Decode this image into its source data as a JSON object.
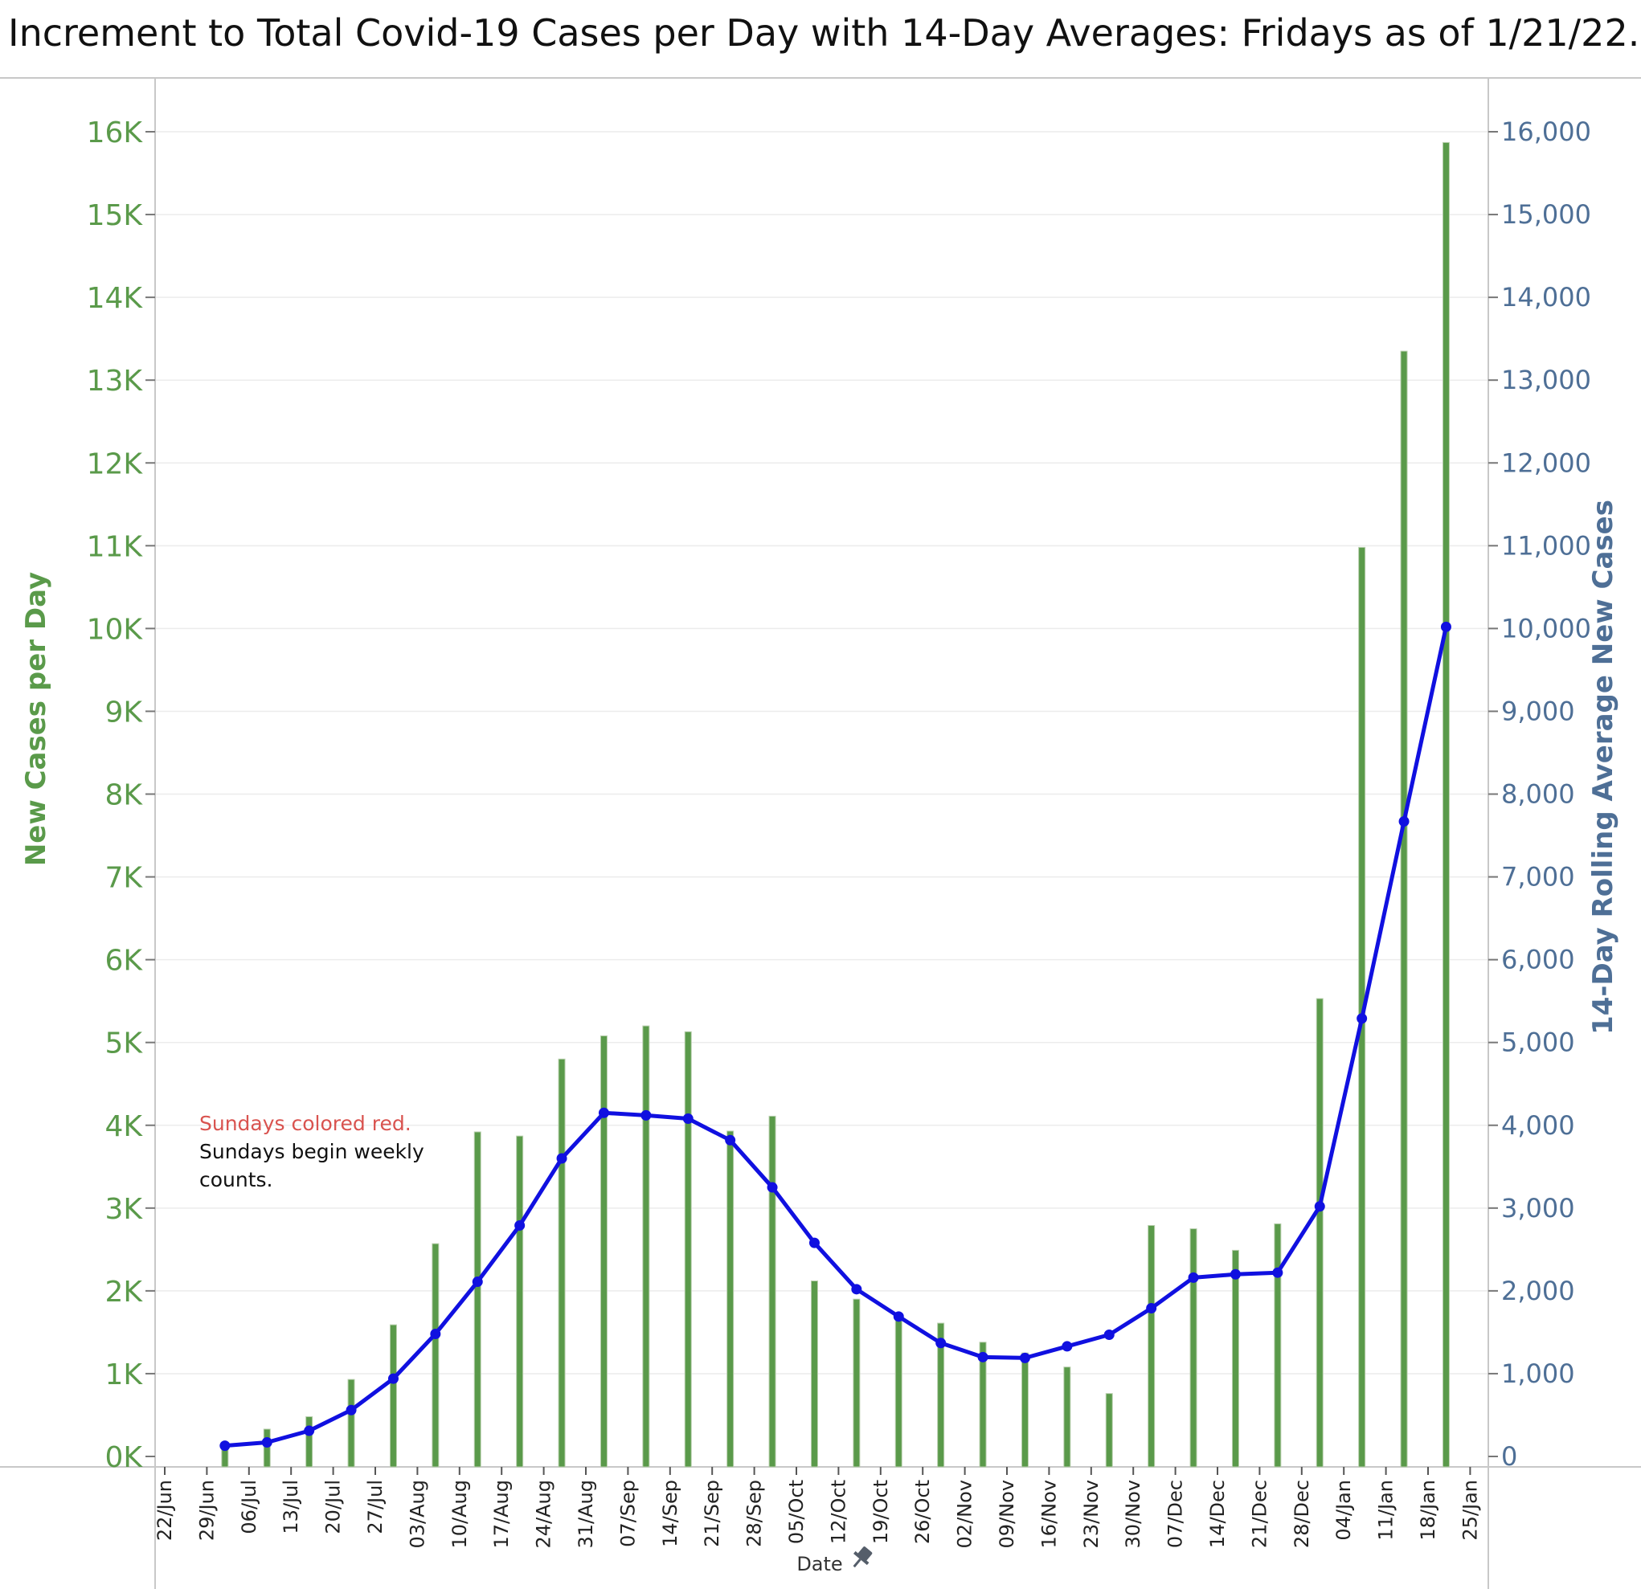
{
  "title": "Increment to Total Covid-19 Cases per Day with 14-Day Averages: Fridays as of 1/21/22.",
  "colors": {
    "bars": "#5a9a4a",
    "line": "#1010e0",
    "left_axis": "#5a9a4a",
    "right_axis": "#4e6f96",
    "note_red": "#d9534f",
    "note_black": "#111111",
    "grid": "#ececec"
  },
  "annotations": {
    "line1": "Sundays colored red.",
    "line2": "Sundays begin weekly",
    "line3": "counts."
  },
  "chart_data": {
    "type": "bar+line",
    "title": "Increment to Total Covid-19 Cases per Day with 14-Day Averages: Fridays as of 1/21/22.",
    "xlabel": "Date",
    "ylabel_left": "New Cases per Day",
    "ylabel_right": "14-Day Rolling Average New Cases",
    "ylim": [
      -200,
      16500
    ],
    "grid": true,
    "x_ticks": [
      "22/Jun",
      "29/Jun",
      "06/Jul",
      "13/Jul",
      "20/Jul",
      "27/Jul",
      "03/Aug",
      "10/Aug",
      "17/Aug",
      "24/Aug",
      "31/Aug",
      "07/Sep",
      "14/Sep",
      "21/Sep",
      "28/Sep",
      "05/Oct",
      "12/Oct",
      "19/Oct",
      "26/Oct",
      "02/Nov",
      "09/Nov",
      "16/Nov",
      "23/Nov",
      "30/Nov",
      "07/Dec",
      "14/Dec",
      "21/Dec",
      "28/Dec",
      "04/Jan",
      "11/Jan",
      "18/Jan",
      "25/Jan"
    ],
    "left_ticks": [
      "0K",
      "1K",
      "2K",
      "3K",
      "4K",
      "5K",
      "6K",
      "7K",
      "8K",
      "9K",
      "10K",
      "11K",
      "12K",
      "13K",
      "14K",
      "15K",
      "16K"
    ],
    "right_ticks": [
      "0",
      "1,000",
      "2,000",
      "3,000",
      "4,000",
      "5,000",
      "6,000",
      "7,000",
      "8,000",
      "9,000",
      "10,000",
      "11,000",
      "12,000",
      "13,000",
      "14,000",
      "15,000",
      "16,000"
    ],
    "dates": [
      "02/Jul",
      "09/Jul",
      "16/Jul",
      "23/Jul",
      "30/Jul",
      "06/Aug",
      "13/Aug",
      "20/Aug",
      "27/Aug",
      "03/Sep",
      "10/Sep",
      "17/Sep",
      "24/Sep",
      "01/Oct",
      "08/Oct",
      "15/Oct",
      "22/Oct",
      "29/Oct",
      "05/Nov",
      "12/Nov",
      "19/Nov",
      "26/Nov",
      "03/Dec",
      "10/Dec",
      "17/Dec",
      "24/Dec",
      "31/Dec",
      "07/Jan",
      "14/Jan",
      "21/Jan"
    ],
    "series": [
      {
        "name": "New Cases per Day",
        "type": "bar",
        "axis": "left",
        "values": [
          100,
          330,
          480,
          930,
          1590,
          2570,
          3920,
          3870,
          4800,
          5080,
          5200,
          5130,
          3930,
          4110,
          2120,
          1900,
          1650,
          1610,
          1380,
          1250,
          1080,
          760,
          2790,
          2750,
          2490,
          2810,
          5530,
          10980,
          13350,
          15870
        ]
      },
      {
        "name": "14-Day Rolling Average New Cases",
        "type": "line",
        "axis": "right",
        "values": [
          130,
          170,
          310,
          560,
          940,
          1480,
          2110,
          2790,
          3600,
          4150,
          4120,
          4080,
          3820,
          3250,
          2580,
          2020,
          1690,
          1370,
          1200,
          1190,
          1330,
          1470,
          1790,
          2160,
          2200,
          2220,
          3020,
          5290,
          7670,
          10020
        ]
      }
    ]
  }
}
